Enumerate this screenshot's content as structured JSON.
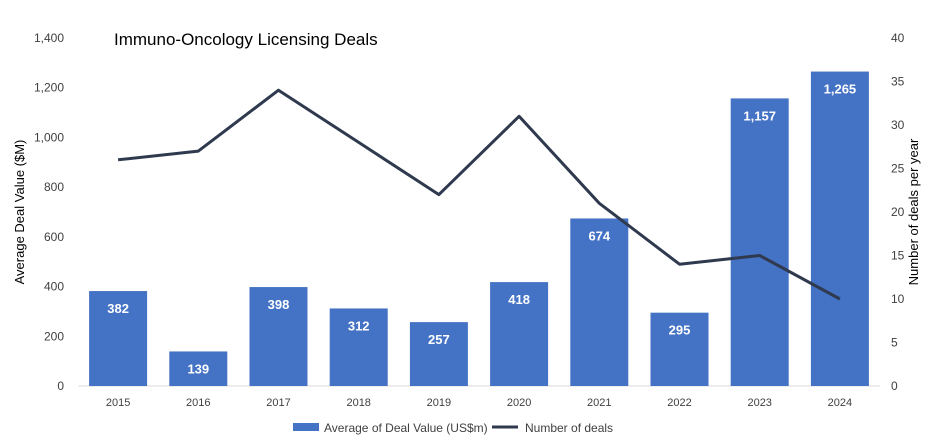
{
  "chart_data": {
    "type": "bar",
    "title": "Immuno-Oncology Licensing Deals",
    "categories": [
      "2015",
      "2016",
      "2017",
      "2018",
      "2019",
      "2020",
      "2021",
      "2022",
      "2023",
      "2024"
    ],
    "ylabel": "Average Deal Value ($M)",
    "y2label": "Number of deals per year",
    "ylim": [
      0,
      1400
    ],
    "y2lim": [
      0,
      40
    ],
    "y_ticks": [
      "0",
      "200",
      "400",
      "600",
      "800",
      "1,000",
      "1,200",
      "1,400"
    ],
    "y2_ticks": [
      "0",
      "5",
      "10",
      "15",
      "20",
      "25",
      "30",
      "35",
      "40"
    ],
    "grid": false,
    "legend_position": "bottom",
    "series": [
      {
        "name": "Average of Deal Value (US$m)",
        "type": "bar",
        "axis": "left",
        "color": "#4472C4",
        "values": [
          382,
          139,
          398,
          312,
          257,
          418,
          674,
          295,
          1157,
          1265
        ],
        "labels": [
          "382",
          "139",
          "398",
          "312",
          "257",
          "418",
          "674",
          "295",
          "1,157",
          "1,265"
        ]
      },
      {
        "name": "Number of deals",
        "type": "line",
        "axis": "right",
        "color": "#2F3A4F",
        "values": [
          26,
          27,
          34,
          28,
          22,
          31,
          21,
          14,
          15,
          10
        ]
      }
    ]
  }
}
